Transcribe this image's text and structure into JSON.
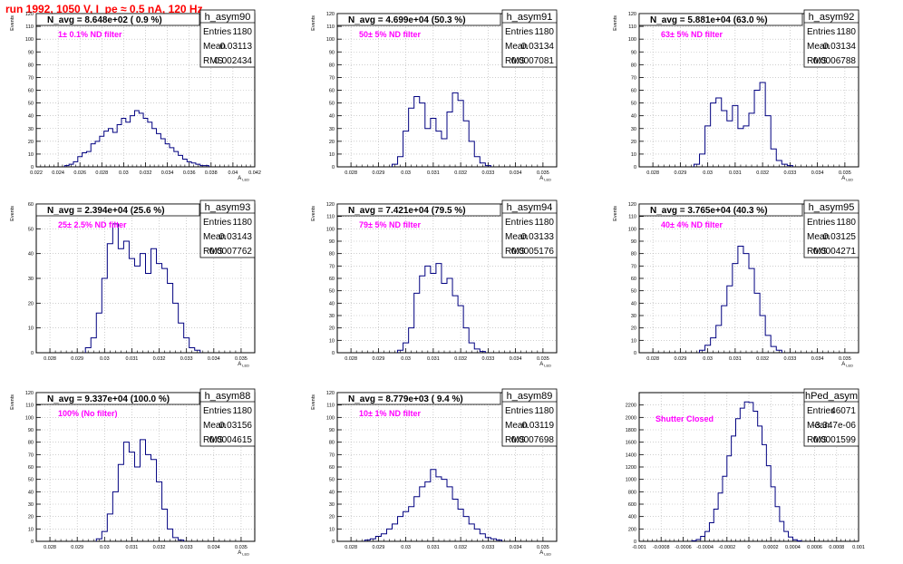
{
  "title": "run 1992,  1050 V, I_pe ≈ 0.5 nA, 120 Hz",
  "colors": {
    "title": "#ff0000",
    "line": "#000080",
    "annotation": "#ff00ff",
    "grid": "#b0b0b0"
  },
  "chart_data": [
    {
      "type": "histogram",
      "name": "h_asym90",
      "n_avg": "N_avg = 8.648e+02 ( 0.9 %)",
      "annotation": "1± 0.1% ND filter",
      "entries": "1180",
      "mean": "0.03113",
      "rms": "0.002434",
      "ylabel": "Events",
      "xlabel": "A_LED",
      "xlim": [
        0.022,
        0.042
      ],
      "ylim": [
        0,
        120
      ],
      "yticks": [
        0,
        10,
        20,
        30,
        40,
        50,
        60,
        70,
        80,
        90,
        100,
        110,
        120
      ],
      "xticks": [
        0.022,
        0.024,
        0.026,
        0.028,
        0.03,
        0.032,
        0.034,
        0.036,
        0.038,
        0.04,
        0.042
      ],
      "xticklabels": [
        "0.022",
        "0.024",
        "0.026",
        "0.028",
        "0.03",
        "0.032",
        "0.034",
        "0.036",
        "0.038",
        "0.04",
        "0.042"
      ],
      "x": [
        0.0248,
        0.0252,
        0.0256,
        0.026,
        0.0264,
        0.0268,
        0.0272,
        0.0276,
        0.028,
        0.0284,
        0.0288,
        0.0292,
        0.0296,
        0.03,
        0.0304,
        0.0308,
        0.0312,
        0.0316,
        0.032,
        0.0324,
        0.0328,
        0.0332,
        0.0336,
        0.034,
        0.0344,
        0.0348,
        0.0352,
        0.0356,
        0.036,
        0.0364,
        0.0368,
        0.0372,
        0.0376
      ],
      "values": [
        1,
        2,
        4,
        8,
        11,
        12,
        18,
        20,
        24,
        28,
        30,
        27,
        33,
        38,
        35,
        40,
        44,
        42,
        38,
        35,
        30,
        26,
        22,
        18,
        15,
        12,
        9,
        6,
        4,
        3,
        2,
        1,
        1
      ]
    },
    {
      "type": "histogram",
      "name": "h_asym91",
      "n_avg": "N_avg = 4.699e+04 (50.3 %)",
      "annotation": "50± 5% ND filter",
      "entries": "1180",
      "mean": "0.03134",
      "rms": "0.0007081",
      "ylabel": "Events",
      "xlabel": "A_LED",
      "xlim": [
        0.0275,
        0.0355
      ],
      "ylim": [
        0,
        120
      ],
      "yticks": [
        0,
        10,
        20,
        30,
        40,
        50,
        60,
        70,
        80,
        90,
        100,
        110,
        120
      ],
      "xticks": [
        0.028,
        0.029,
        0.03,
        0.031,
        0.032,
        0.033,
        0.034,
        0.035
      ],
      "xticklabels": [
        "0.028",
        "0.029",
        "0.03",
        "0.031",
        "0.032",
        "0.033",
        "0.034",
        "0.035"
      ],
      "x": [
        0.0296,
        0.0298,
        0.03,
        0.0302,
        0.0304,
        0.0306,
        0.0308,
        0.031,
        0.0312,
        0.0314,
        0.0316,
        0.0318,
        0.032,
        0.0322,
        0.0324,
        0.0326,
        0.0328,
        0.033
      ],
      "values": [
        2,
        8,
        28,
        46,
        55,
        50,
        30,
        38,
        28,
        22,
        43,
        58,
        52,
        36,
        20,
        8,
        3,
        1
      ]
    },
    {
      "type": "histogram",
      "name": "h_asym92",
      "n_avg": "N_avg = 5.881e+04 (63.0 %)",
      "annotation": "63± 5% ND filter",
      "entries": "1180",
      "mean": "0.03134",
      "rms": "0.0006788",
      "ylabel": "Events",
      "xlabel": "A_LED",
      "xlim": [
        0.0275,
        0.0355
      ],
      "ylim": [
        0,
        120
      ],
      "yticks": [
        0,
        10,
        20,
        30,
        40,
        50,
        60,
        70,
        80,
        90,
        100,
        110,
        120
      ],
      "xticks": [
        0.028,
        0.029,
        0.03,
        0.031,
        0.032,
        0.033,
        0.034,
        0.035
      ],
      "xticklabels": [
        "0.028",
        "0.029",
        "0.03",
        "0.031",
        "0.032",
        "0.033",
        "0.034",
        "0.035"
      ],
      "x": [
        0.0296,
        0.0298,
        0.03,
        0.0302,
        0.0304,
        0.0306,
        0.0308,
        0.031,
        0.0312,
        0.0314,
        0.0316,
        0.0318,
        0.032,
        0.0322,
        0.0324,
        0.0326,
        0.0328,
        0.033
      ],
      "values": [
        2,
        10,
        32,
        50,
        54,
        44,
        36,
        48,
        30,
        32,
        42,
        60,
        66,
        40,
        14,
        5,
        2,
        1
      ]
    },
    {
      "type": "histogram",
      "name": "h_asym93",
      "n_avg": "N_avg = 2.394e+04 (25.6 %)",
      "annotation": "25± 2.5% ND filter",
      "entries": "1180",
      "mean": "0.03143",
      "rms": "0.0007762",
      "ylabel": "Events",
      "xlabel": "A_LED",
      "xlim": [
        0.0275,
        0.0355
      ],
      "ylim": [
        0,
        60
      ],
      "yticks": [
        0,
        10,
        20,
        30,
        40,
        50,
        60
      ],
      "xticks": [
        0.028,
        0.029,
        0.03,
        0.031,
        0.032,
        0.033,
        0.034,
        0.035
      ],
      "xticklabels": [
        "0.028",
        "0.029",
        "0.03",
        "0.031",
        "0.032",
        "0.033",
        "0.034",
        "0.035"
      ],
      "x": [
        0.0294,
        0.0296,
        0.0298,
        0.03,
        0.0302,
        0.0304,
        0.0306,
        0.0308,
        0.031,
        0.0312,
        0.0314,
        0.0316,
        0.0318,
        0.032,
        0.0322,
        0.0324,
        0.0326,
        0.0328,
        0.033,
        0.0332,
        0.0334
      ],
      "values": [
        2,
        6,
        16,
        30,
        44,
        52,
        42,
        45,
        38,
        35,
        40,
        32,
        42,
        36,
        34,
        28,
        20,
        12,
        6,
        2,
        1
      ]
    },
    {
      "type": "histogram",
      "name": "h_asym94",
      "n_avg": "N_avg = 7.421e+04 (79.5 %)",
      "annotation": "79± 5% ND filter",
      "entries": "1180",
      "mean": "0.03133",
      "rms": "0.0005176",
      "ylabel": "Events",
      "xlabel": "A_LED",
      "xlim": [
        0.0275,
        0.0355
      ],
      "ylim": [
        0,
        120
      ],
      "yticks": [
        0,
        10,
        20,
        30,
        40,
        50,
        60,
        70,
        80,
        90,
        100,
        110,
        120
      ],
      "xticks": [
        0.028,
        0.029,
        0.03,
        0.031,
        0.032,
        0.033,
        0.034,
        0.035
      ],
      "xticklabels": [
        "0.028",
        "0.029",
        "0.03",
        "0.031",
        "0.032",
        "0.033",
        "0.034",
        "0.035"
      ],
      "x": [
        0.0298,
        0.03,
        0.0302,
        0.0304,
        0.0306,
        0.0308,
        0.031,
        0.0312,
        0.0314,
        0.0316,
        0.0318,
        0.032,
        0.0322,
        0.0324,
        0.0326,
        0.0328
      ],
      "values": [
        2,
        8,
        20,
        48,
        62,
        70,
        64,
        72,
        56,
        60,
        46,
        38,
        20,
        8,
        3,
        1
      ]
    },
    {
      "type": "histogram",
      "name": "h_asym95",
      "n_avg": "N_avg = 3.765e+04 (40.3 %)",
      "annotation": "40± 4% ND filter",
      "entries": "1180",
      "mean": "0.03125",
      "rms": "0.0004271",
      "ylabel": "Events",
      "xlabel": "A_LED",
      "xlim": [
        0.0275,
        0.0355
      ],
      "ylim": [
        0,
        120
      ],
      "yticks": [
        0,
        10,
        20,
        30,
        40,
        50,
        60,
        70,
        80,
        90,
        100,
        110,
        120
      ],
      "xticks": [
        0.028,
        0.029,
        0.03,
        0.031,
        0.032,
        0.033,
        0.034,
        0.035
      ],
      "xticklabels": [
        "0.028",
        "0.029",
        "0.03",
        "0.031",
        "0.032",
        "0.033",
        "0.034",
        "0.035"
      ],
      "x": [
        0.0298,
        0.03,
        0.0302,
        0.0304,
        0.0306,
        0.0308,
        0.031,
        0.0312,
        0.0314,
        0.0316,
        0.0318,
        0.032,
        0.0322,
        0.0324,
        0.0326
      ],
      "values": [
        2,
        6,
        12,
        22,
        38,
        54,
        72,
        86,
        80,
        68,
        48,
        30,
        14,
        5,
        2
      ]
    },
    {
      "type": "histogram",
      "name": "h_asym88",
      "n_avg": "N_avg = 9.337e+04 (100.0 %)",
      "annotation": "100% (No filter)",
      "entries": "1180",
      "mean": "0.03156",
      "rms": "0.0004615",
      "ylabel": "Events",
      "xlabel": "A_LED",
      "xlim": [
        0.0275,
        0.0355
      ],
      "ylim": [
        0,
        120
      ],
      "yticks": [
        0,
        10,
        20,
        30,
        40,
        50,
        60,
        70,
        80,
        90,
        100,
        110,
        120
      ],
      "xticks": [
        0.028,
        0.029,
        0.03,
        0.031,
        0.032,
        0.033,
        0.034,
        0.035
      ],
      "xticklabels": [
        "0.028",
        "0.029",
        "0.03",
        "0.031",
        "0.032",
        "0.033",
        "0.034",
        "0.035"
      ],
      "x": [
        0.0298,
        0.03,
        0.0302,
        0.0304,
        0.0306,
        0.0308,
        0.031,
        0.0312,
        0.0314,
        0.0316,
        0.0318,
        0.032,
        0.0322,
        0.0324,
        0.0326,
        0.0328
      ],
      "values": [
        2,
        8,
        22,
        40,
        62,
        80,
        72,
        60,
        82,
        70,
        66,
        48,
        26,
        10,
        3,
        1
      ]
    },
    {
      "type": "histogram",
      "name": "h_asym89",
      "n_avg": "N_avg = 8.779e+03 ( 9.4 %)",
      "annotation": "10± 1% ND filter",
      "entries": "1180",
      "mean": "0.03119",
      "rms": "0.0007698",
      "ylabel": "Events",
      "xlabel": "A_LED",
      "xlim": [
        0.0275,
        0.0355
      ],
      "ylim": [
        0,
        120
      ],
      "yticks": [
        0,
        10,
        20,
        30,
        40,
        50,
        60,
        70,
        80,
        90,
        100,
        110,
        120
      ],
      "xticks": [
        0.028,
        0.029,
        0.03,
        0.031,
        0.032,
        0.033,
        0.034,
        0.035
      ],
      "xticklabels": [
        "0.028",
        "0.029",
        "0.03",
        "0.031",
        "0.032",
        "0.033",
        "0.034",
        "0.035"
      ],
      "x": [
        0.0286,
        0.0288,
        0.029,
        0.0292,
        0.0294,
        0.0296,
        0.0298,
        0.03,
        0.0302,
        0.0304,
        0.0306,
        0.0308,
        0.031,
        0.0312,
        0.0314,
        0.0316,
        0.0318,
        0.032,
        0.0322,
        0.0324,
        0.0326,
        0.0328,
        0.033,
        0.0332,
        0.0334
      ],
      "values": [
        1,
        2,
        4,
        6,
        10,
        14,
        20,
        24,
        28,
        36,
        44,
        48,
        58,
        52,
        50,
        44,
        34,
        26,
        20,
        14,
        10,
        6,
        3,
        2,
        1
      ]
    },
    {
      "type": "histogram",
      "name": "hPed_asym",
      "n_avg": "",
      "annotation": "Shutter Closed",
      "entries": "46071",
      "mean": "-3.347e-06",
      "rms": "0.0001599",
      "ylabel": "",
      "xlabel": "",
      "xlim": [
        -0.001,
        0.001
      ],
      "ylim": [
        0,
        2400
      ],
      "yticks": [
        0,
        200,
        400,
        600,
        800,
        1000,
        1200,
        1400,
        1600,
        1800,
        2000,
        2200
      ],
      "xticks": [
        -0.001,
        -0.0008,
        -0.0006,
        -0.0004,
        -0.0002,
        0,
        0.0002,
        0.0004,
        0.0006,
        0.0008,
        0.001
      ],
      "xticklabels": [
        "-0.001",
        "-0.0008",
        "-0.0006",
        "-0.0004",
        "-0.0002",
        "0",
        "0.0002",
        "0.0004",
        "0.0006",
        "0.0008",
        "0.001"
      ],
      "x": [
        -0.0005,
        -0.00046,
        -0.00042,
        -0.00038,
        -0.00034,
        -0.0003,
        -0.00026,
        -0.00022,
        -0.00018,
        -0.00014,
        -0.0001,
        -6e-05,
        -2e-05,
        2e-05,
        6e-05,
        0.0001,
        0.00014,
        0.00018,
        0.00022,
        0.00026,
        0.0003,
        0.00034,
        0.00038,
        0.00042,
        0.00046
      ],
      "values": [
        10,
        30,
        80,
        160,
        300,
        520,
        780,
        1050,
        1380,
        1700,
        1980,
        2150,
        2250,
        2240,
        2100,
        1860,
        1560,
        1220,
        880,
        560,
        320,
        160,
        70,
        25,
        8
      ]
    }
  ]
}
